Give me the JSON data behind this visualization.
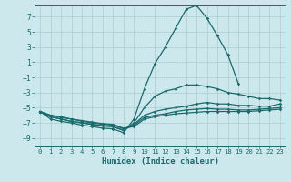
{
  "xlabel": "Humidex (Indice chaleur)",
  "bg_color": "#cde8ec",
  "grid_color": "#aacccc",
  "line_color": "#1a6b6b",
  "xlim": [
    -0.5,
    23.5
  ],
  "ylim": [
    -10,
    8.5
  ],
  "yticks": [
    7,
    5,
    3,
    1,
    -1,
    -3,
    -5,
    -7,
    -9
  ],
  "xticks": [
    0,
    1,
    2,
    3,
    4,
    5,
    6,
    7,
    8,
    9,
    10,
    11,
    12,
    13,
    14,
    15,
    16,
    17,
    18,
    19,
    20,
    21,
    22,
    23
  ],
  "lines": [
    {
      "x": [
        0,
        1,
        2,
        3,
        4,
        5,
        6,
        7,
        8,
        9,
        10,
        11,
        12,
        13,
        14,
        15,
        16,
        17,
        18,
        19
      ],
      "y": [
        -5.5,
        -6.5,
        -6.8,
        -7.0,
        -7.3,
        -7.5,
        -7.7,
        -7.8,
        -8.3,
        -6.5,
        -2.5,
        0.8,
        3.0,
        5.5,
        8.0,
        8.5,
        6.8,
        4.5,
        2.0,
        -1.8
      ]
    },
    {
      "x": [
        0,
        1,
        2,
        3,
        4,
        5,
        6,
        7,
        8,
        9,
        10,
        11,
        12,
        13,
        14,
        15,
        16,
        17,
        18,
        19,
        20,
        21,
        22,
        23
      ],
      "y": [
        -5.5,
        -6.2,
        -6.5,
        -6.8,
        -7.0,
        -7.2,
        -7.4,
        -7.5,
        -8.0,
        -7.0,
        -5.0,
        -3.5,
        -2.8,
        -2.5,
        -2.0,
        -2.0,
        -2.2,
        -2.5,
        -3.0,
        -3.2,
        -3.5,
        -3.8,
        -3.8,
        -4.0
      ]
    },
    {
      "x": [
        0,
        1,
        2,
        3,
        4,
        5,
        6,
        7,
        8,
        9,
        10,
        11,
        12,
        13,
        14,
        15,
        16,
        17,
        18,
        19,
        20,
        21,
        22,
        23
      ],
      "y": [
        -5.5,
        -6.2,
        -6.5,
        -6.8,
        -7.0,
        -7.2,
        -7.4,
        -7.5,
        -8.0,
        -7.2,
        -6.0,
        -5.5,
        -5.2,
        -5.0,
        -4.8,
        -4.5,
        -4.3,
        -4.5,
        -4.5,
        -4.7,
        -4.7,
        -4.8,
        -4.8,
        -4.5
      ]
    },
    {
      "x": [
        0,
        1,
        2,
        3,
        4,
        5,
        6,
        7,
        8,
        9,
        10,
        11,
        12,
        13,
        14,
        15,
        16,
        17,
        18,
        19,
        20,
        21,
        22,
        23
      ],
      "y": [
        -5.5,
        -6.0,
        -6.3,
        -6.5,
        -6.8,
        -7.0,
        -7.2,
        -7.3,
        -7.8,
        -7.3,
        -6.3,
        -6.0,
        -5.8,
        -5.5,
        -5.3,
        -5.2,
        -5.1,
        -5.2,
        -5.2,
        -5.3,
        -5.3,
        -5.2,
        -5.1,
        -5.0
      ]
    },
    {
      "x": [
        0,
        1,
        2,
        3,
        4,
        5,
        6,
        7,
        8,
        9,
        10,
        11,
        12,
        13,
        14,
        15,
        16,
        17,
        18,
        19,
        20,
        21,
        22,
        23
      ],
      "y": [
        -5.5,
        -6.0,
        -6.2,
        -6.5,
        -6.7,
        -6.9,
        -7.1,
        -7.2,
        -7.7,
        -7.5,
        -6.5,
        -6.2,
        -6.0,
        -5.8,
        -5.7,
        -5.6,
        -5.5,
        -5.5,
        -5.5,
        -5.5,
        -5.5,
        -5.4,
        -5.3,
        -5.2
      ]
    }
  ]
}
